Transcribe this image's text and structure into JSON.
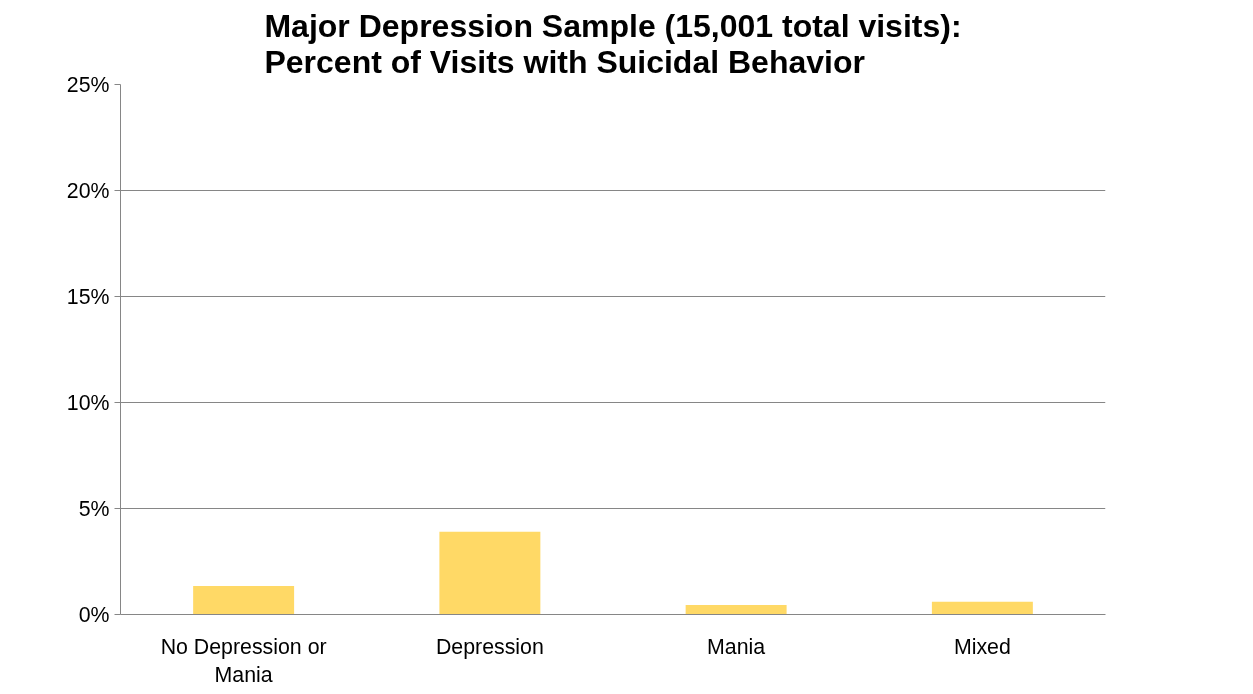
{
  "chart_data": {
    "type": "bar",
    "title": "Major Depression Sample (15,001 total visits):\nPercent of Visits with Suicidal Behavior",
    "categories": [
      "No Depression or Mania",
      "Depression",
      "Mania",
      "Mixed"
    ],
    "values": [
      1.35,
      3.9,
      0.45,
      0.6
    ],
    "color": "#ffd966",
    "ylim": [
      0,
      25
    ],
    "yticks": [
      {
        "value": 0,
        "label": "0%"
      },
      {
        "value": 5,
        "label": "5%"
      },
      {
        "value": 10,
        "label": "10%"
      },
      {
        "value": 15,
        "label": "15%"
      },
      {
        "value": 20,
        "label": "20%"
      },
      {
        "value": 25,
        "label": "25%"
      }
    ],
    "grid": "y"
  }
}
